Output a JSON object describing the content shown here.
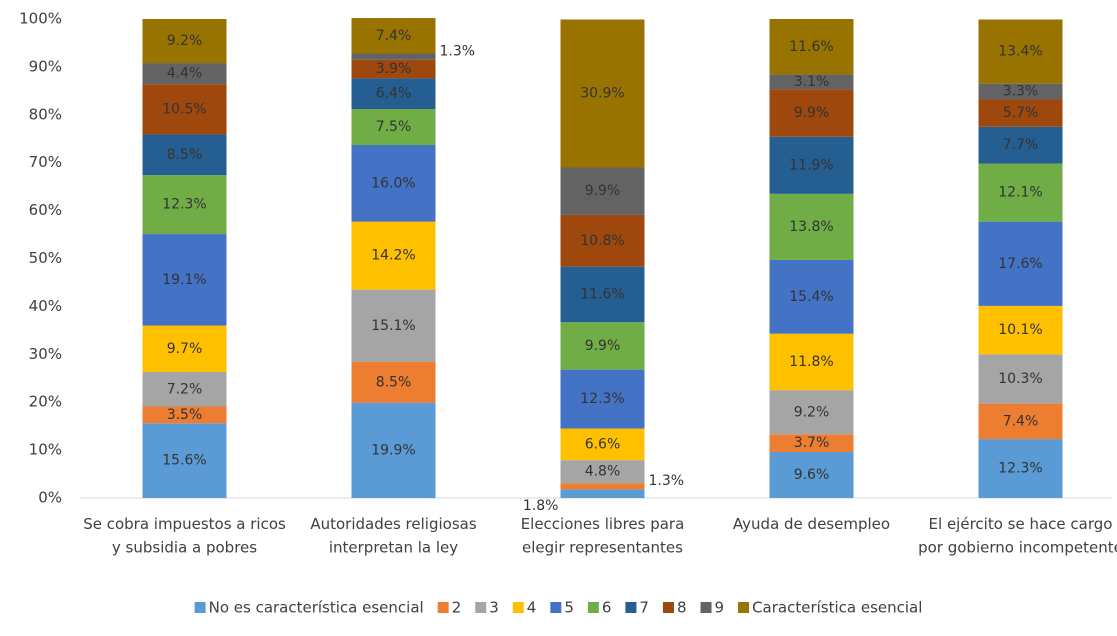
{
  "chart_data": {
    "type": "stacked_bar",
    "categories": [
      "Se cobra impuestos a ricos y subsidia a pobres",
      "Autoridades religiosas interpretan la ley",
      "Elecciones libres para elegir representantes",
      "Ayuda de desempleo",
      "El ejército se hace cargo por gobierno incompetente"
    ],
    "series": [
      {
        "name": "No es característica esencial",
        "color": "#5b9bd5",
        "values": [
          15.6,
          19.9,
          1.8,
          9.6,
          12.3
        ],
        "value_labels": [
          "15.6%",
          "19.9%",
          "1.8%",
          "9.6%",
          "12.3%"
        ]
      },
      {
        "name": "2",
        "color": "#ed7d31",
        "values": [
          3.5,
          8.5,
          1.3,
          3.7,
          7.4
        ],
        "value_labels": [
          "3.5%",
          "8.5%",
          "1.3%",
          "3.7%",
          "7.4%"
        ]
      },
      {
        "name": "3",
        "color": "#a5a5a5",
        "values": [
          7.2,
          15.1,
          4.8,
          9.2,
          10.3
        ],
        "value_labels": [
          "7.2%",
          "15.1%",
          "4.8%",
          "9.2%",
          "10.3%"
        ]
      },
      {
        "name": "4",
        "color": "#ffc000",
        "values": [
          9.7,
          14.2,
          6.6,
          11.8,
          10.1
        ],
        "value_labels": [
          "9.7%",
          "14.2%",
          "6.6%",
          "11.8%",
          "10.1%"
        ]
      },
      {
        "name": "5",
        "color": "#4472c4",
        "values": [
          19.1,
          16.0,
          12.3,
          15.4,
          17.6
        ],
        "value_labels": [
          "19.1%",
          "16.0%",
          "12.3%",
          "15.4%",
          "17.6%"
        ]
      },
      {
        "name": "6",
        "color": "#70ad47",
        "values": [
          12.3,
          7.5,
          9.9,
          13.8,
          12.1
        ],
        "value_labels": [
          "12.3%",
          "7.5%",
          "9.9%",
          "13.8%",
          "12.1%"
        ]
      },
      {
        "name": "7",
        "color": "#255e91",
        "values": [
          8.5,
          6.4,
          11.6,
          11.9,
          7.7
        ],
        "value_labels": [
          "8.5%",
          "6.4%",
          "11.6%",
          "11.9%",
          "7.7%"
        ]
      },
      {
        "name": "8",
        "color": "#9e480e",
        "values": [
          10.5,
          3.9,
          10.8,
          9.9,
          5.7
        ],
        "value_labels": [
          "10.5%",
          "3.9%",
          "10.8%",
          "9.9%",
          "5.7%"
        ]
      },
      {
        "name": "9",
        "color": "#636363",
        "values": [
          4.4,
          1.3,
          9.9,
          3.1,
          3.3
        ],
        "value_labels": [
          "4.4%",
          "1.3%",
          "9.9%",
          "3.1%",
          "3.3%"
        ]
      },
      {
        "name": "Característica esencial",
        "color": "#997300",
        "values": [
          9.2,
          7.4,
          30.9,
          11.6,
          13.4
        ],
        "value_labels": [
          "9.2%",
          "7.4%",
          "30.9%",
          "11.6%",
          "13.4%"
        ]
      }
    ],
    "ylim": [
      0,
      100
    ],
    "yticks": [
      {
        "value": 0,
        "label": "0%"
      },
      {
        "value": 10,
        "label": "10%"
      },
      {
        "value": 20,
        "label": "20%"
      },
      {
        "value": 30,
        "label": "30%"
      },
      {
        "value": 40,
        "label": "40%"
      },
      {
        "value": 50,
        "label": "50%"
      },
      {
        "value": 60,
        "label": "60%"
      },
      {
        "value": 70,
        "label": "70%"
      },
      {
        "value": 80,
        "label": "80%"
      },
      {
        "value": 90,
        "label": "90%"
      },
      {
        "value": 100,
        "label": "100%"
      }
    ],
    "legend": "bottom"
  }
}
